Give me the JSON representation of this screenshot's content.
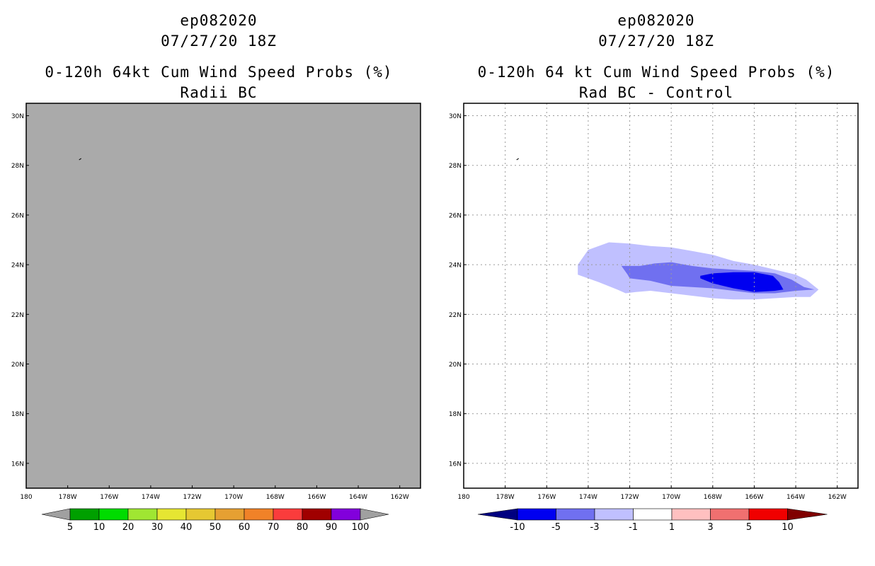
{
  "chart_data": [
    {
      "type": "heatmap",
      "storm_id": "ep082020",
      "datetime": "07/27/20 18Z",
      "title": "0-120h 64kt Cum Wind Speed Probs (%)",
      "subtitle": "Radii BC",
      "field_fill_color": "#aaaaaa",
      "field_description": "uniform undefined field",
      "xlim": [
        180,
        161
      ],
      "ylim": [
        15,
        30.5
      ],
      "x_ticks": [
        "180",
        "178W",
        "176W",
        "174W",
        "172W",
        "170W",
        "168W",
        "166W",
        "164W",
        "162W"
      ],
      "y_ticks": [
        "30N",
        "28N",
        "26N",
        "24N",
        "22N",
        "20N",
        "18N",
        "16N"
      ],
      "gridlines": false,
      "colorbar": {
        "labels": [
          "5",
          "10",
          "20",
          "30",
          "40",
          "50",
          "60",
          "70",
          "80",
          "90",
          "100"
        ],
        "colors": [
          "#a0a0a0",
          "#00a000",
          "#00dc00",
          "#a0e632",
          "#e6e632",
          "#e6c832",
          "#e6a032",
          "#f08228",
          "#fa3c3c",
          "#a00000",
          "#8200dc",
          "#a0a0a0"
        ]
      }
    },
    {
      "type": "heatmap",
      "storm_id": "ep082020",
      "datetime": "07/27/20 18Z",
      "title": "0-120h 64 kt Cum Wind Speed Probs (%)",
      "subtitle": "Rad BC - Control",
      "xlim": [
        180,
        161
      ],
      "ylim": [
        15,
        30.5
      ],
      "x_ticks": [
        "180",
        "178W",
        "176W",
        "174W",
        "172W",
        "170W",
        "168W",
        "166W",
        "164W",
        "162W"
      ],
      "y_ticks": [
        "30N",
        "28N",
        "26N",
        "24N",
        "22N",
        "20N",
        "18N",
        "16N"
      ],
      "gridlines": true,
      "contour_levels": [
        {
          "range": "-3 to -1",
          "color": "#c0c0ff",
          "polygon_lon_lat": [
            [
              174.5,
              24.0
            ],
            [
              174.0,
              24.6
            ],
            [
              173.0,
              24.9
            ],
            [
              172.0,
              24.85
            ],
            [
              171.0,
              24.75
            ],
            [
              170.0,
              24.7
            ],
            [
              169.0,
              24.55
            ],
            [
              168.0,
              24.4
            ],
            [
              167.0,
              24.15
            ],
            [
              166.0,
              24.0
            ],
            [
              165.0,
              23.8
            ],
            [
              164.0,
              23.6
            ],
            [
              163.5,
              23.4
            ],
            [
              162.9,
              23.0
            ],
            [
              163.3,
              22.7
            ],
            [
              164.0,
              22.7
            ],
            [
              165.0,
              22.65
            ],
            [
              166.0,
              22.6
            ],
            [
              167.0,
              22.6
            ],
            [
              168.0,
              22.65
            ],
            [
              169.0,
              22.75
            ],
            [
              170.0,
              22.85
            ],
            [
              171.0,
              22.95
            ],
            [
              171.7,
              22.9
            ],
            [
              172.2,
              22.85
            ],
            [
              172.6,
              23.0
            ],
            [
              173.5,
              23.3
            ],
            [
              174.5,
              23.6
            ]
          ]
        },
        {
          "range": "-5 to -3",
          "color": "#7070f0",
          "polygon_lon_lat": [
            [
              172.4,
              23.95
            ],
            [
              171.5,
              23.95
            ],
            [
              170.8,
              24.05
            ],
            [
              170.0,
              24.1
            ],
            [
              169.0,
              23.95
            ],
            [
              168.0,
              23.85
            ],
            [
              167.0,
              23.8
            ],
            [
              166.0,
              23.75
            ],
            [
              165.0,
              23.65
            ],
            [
              164.2,
              23.4
            ],
            [
              163.6,
              23.1
            ],
            [
              163.1,
              23.0
            ],
            [
              164.0,
              22.95
            ],
            [
              165.0,
              22.85
            ],
            [
              166.0,
              22.85
            ],
            [
              167.0,
              22.95
            ],
            [
              168.0,
              23.05
            ],
            [
              169.0,
              23.1
            ],
            [
              170.0,
              23.15
            ],
            [
              171.0,
              23.35
            ],
            [
              172.0,
              23.45
            ],
            [
              172.1,
              23.6
            ]
          ]
        },
        {
          "range": "-10 to -5",
          "color": "#0000f0",
          "polygon_lon_lat": [
            [
              168.6,
              23.55
            ],
            [
              168.0,
              23.65
            ],
            [
              167.0,
              23.7
            ],
            [
              166.0,
              23.7
            ],
            [
              165.1,
              23.55
            ],
            [
              164.8,
              23.3
            ],
            [
              164.6,
              23.0
            ],
            [
              165.0,
              22.95
            ],
            [
              166.0,
              22.9
            ],
            [
              167.0,
              23.05
            ],
            [
              168.0,
              23.25
            ],
            [
              168.6,
              23.45
            ]
          ]
        }
      ],
      "colorbar": {
        "labels": [
          "-10",
          "-5",
          "-3",
          "-1",
          "1",
          "3",
          "5",
          "10"
        ],
        "colors": [
          "#000080",
          "#0000f0",
          "#7070f0",
          "#c0c0ff",
          "#ffffff",
          "#ffc0c0",
          "#f07070",
          "#f00000",
          "#800000"
        ]
      }
    }
  ]
}
